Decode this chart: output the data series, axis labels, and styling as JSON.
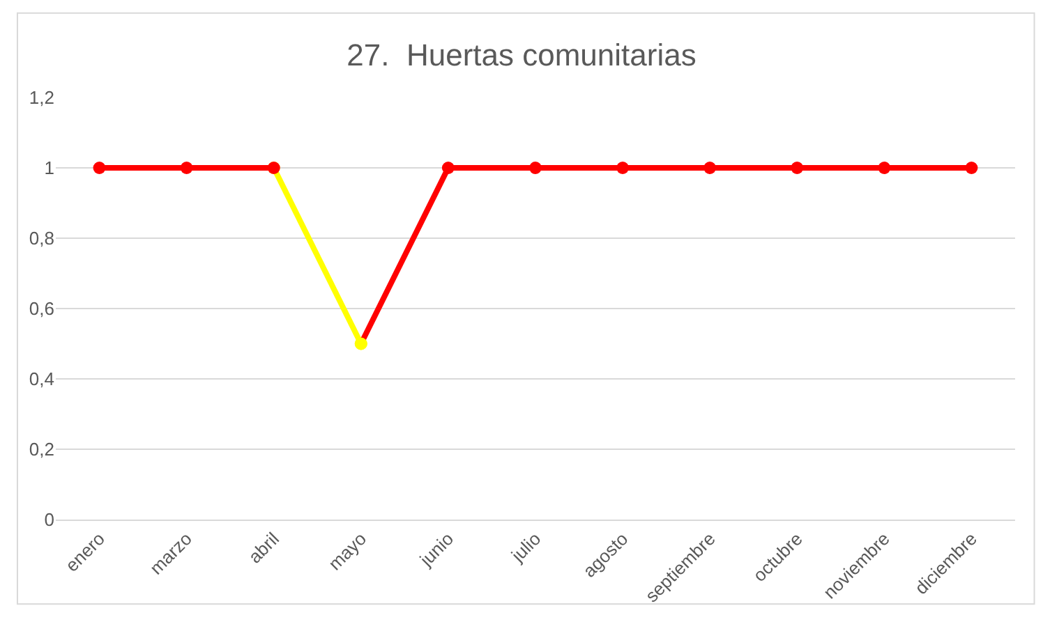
{
  "chart_data": {
    "type": "line",
    "title": "27.  Huertas comunitarias",
    "categories": [
      "enero",
      "marzo",
      "abril",
      "mayo",
      "junio",
      "julio",
      "agosto",
      "septiembre",
      "octubre",
      "noviembre",
      "diciembre"
    ],
    "series": [
      {
        "color": "#ffff00",
        "values": [
          null,
          null,
          1,
          0.5,
          null,
          null,
          null,
          null,
          null,
          null,
          null
        ]
      },
      {
        "color": "#ff0000",
        "values": [
          1,
          1,
          1,
          null,
          null,
          null,
          null,
          null,
          null,
          null,
          null
        ]
      },
      {
        "color": "#ff0000",
        "colors": [
          "#ff0000",
          "#ff0000",
          "#ff0000",
          "#ffff00",
          "#ff0000",
          "#ff0000",
          "#ff0000",
          "#ff0000",
          "#ff0000",
          "#ff0000",
          "#ff0000"
        ],
        "values": [
          null,
          null,
          null,
          0.5,
          1,
          1,
          1,
          1,
          1,
          1,
          1
        ]
      }
    ],
    "ylim": [
      0,
      1.2
    ],
    "yticks": [
      0,
      {
        "value": 0.2,
        "label": "0,2"
      },
      {
        "value": 0.4,
        "label": "0,4"
      },
      {
        "value": 0.6,
        "label": "0,6"
      },
      {
        "value": 0.8,
        "label": "0,8"
      },
      1,
      {
        "value": 1.2,
        "label": "1,2"
      }
    ],
    "grid": "y",
    "marker": "circle",
    "line_style": "solid"
  }
}
